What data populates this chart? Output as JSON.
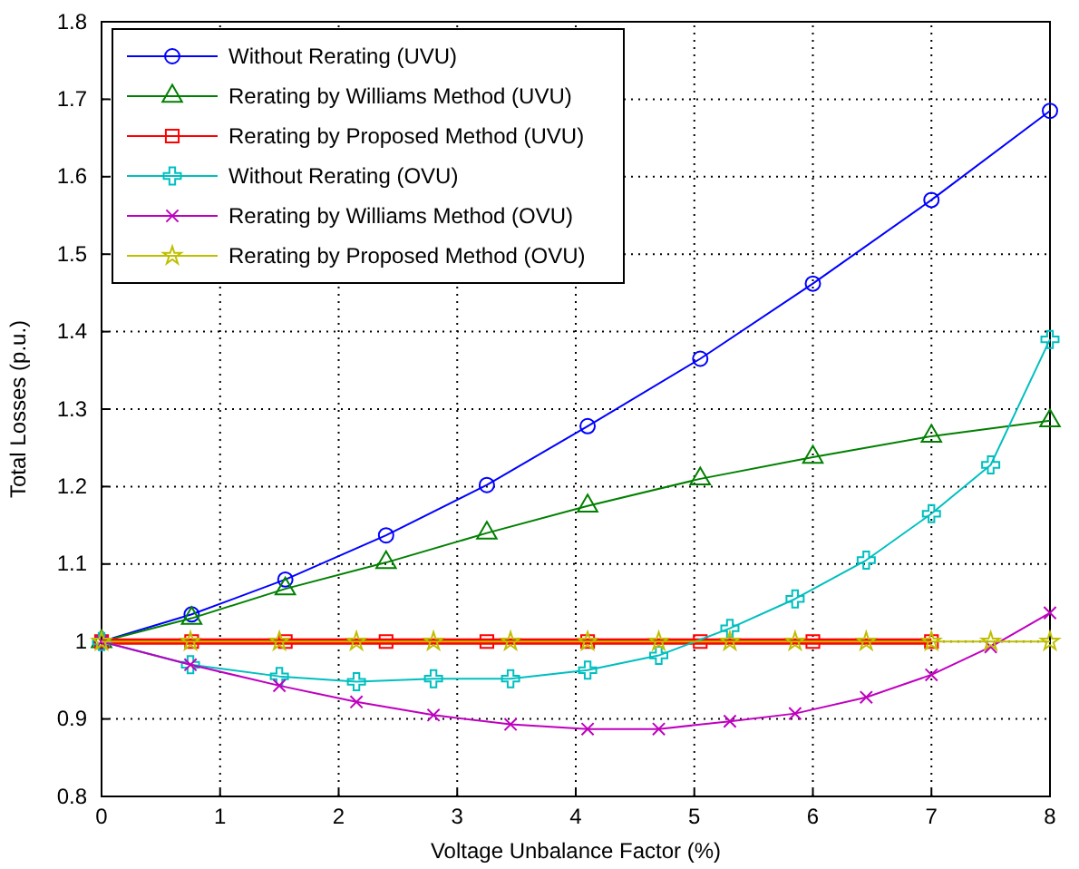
{
  "chart_data": {
    "type": "line",
    "xlabel": "Voltage Unbalance Factor (%)",
    "ylabel": "Total Losses (p.u.)",
    "xlim": [
      0,
      8
    ],
    "xticks": [
      0,
      1,
      2,
      3,
      4,
      5,
      6,
      7,
      8
    ],
    "ylim": [
      0.8,
      1.8
    ],
    "yticks": [
      0.8,
      0.9,
      1,
      1.1,
      1.2,
      1.3,
      1.4,
      1.5,
      1.6,
      1.7,
      1.8
    ],
    "grid": true,
    "legend": "top left",
    "series": [
      {
        "name": "Without Rerating (UVU)",
        "color": "#0000ff",
        "marker": "circle",
        "x": [
          0,
          0.76,
          1.55,
          2.4,
          3.25,
          4.1,
          5.05,
          6,
          7,
          8
        ],
        "values": [
          1,
          1.035,
          1.08,
          1.137,
          1.202,
          1.278,
          1.365,
          1.462,
          1.57,
          1.685
        ]
      },
      {
        "name": "Rerating by Williams Method (UVU)",
        "color": "#008000",
        "marker": "triangle",
        "x": [
          0,
          0.76,
          1.55,
          2.4,
          3.25,
          4.1,
          5.05,
          6,
          7,
          8
        ],
        "values": [
          1,
          1.03,
          1.068,
          1.102,
          1.14,
          1.175,
          1.21,
          1.238,
          1.265,
          1.285
        ]
      },
      {
        "name": "Rerating by Proposed Method (UVU)",
        "color": "#ff0000",
        "marker": "square",
        "x": [
          0,
          0.76,
          1.55,
          2.4,
          3.25,
          4.1,
          5.05,
          6,
          7
        ],
        "values": [
          1,
          1,
          1,
          1,
          1,
          1,
          1,
          1,
          1
        ]
      },
      {
        "name": "Without Rerating (OVU)",
        "color": "#00bfbf",
        "marker": "cross",
        "x": [
          0,
          0.75,
          1.5,
          2.15,
          2.8,
          3.45,
          4.1,
          4.7,
          5.3,
          5.85,
          6.45,
          7,
          7.5,
          8
        ],
        "values": [
          1,
          0.97,
          0.955,
          0.948,
          0.952,
          0.952,
          0.963,
          0.982,
          1.017,
          1.055,
          1.105,
          1.165,
          1.228,
          1.39
        ]
      },
      {
        "name": "Rerating by Williams Method (OVU)",
        "color": "#bf00bf",
        "marker": "x",
        "x": [
          0,
          0.75,
          1.5,
          2.15,
          2.8,
          3.45,
          4.1,
          4.7,
          5.3,
          5.85,
          6.45,
          7,
          7.5,
          8
        ],
        "values": [
          1,
          0.97,
          0.943,
          0.922,
          0.905,
          0.893,
          0.887,
          0.887,
          0.897,
          0.907,
          0.928,
          0.957,
          0.993,
          1.037
        ]
      },
      {
        "name": "Rerating by Proposed Method (OVU)",
        "color": "#bfbf00",
        "marker": "star",
        "x": [
          0,
          0.75,
          1.5,
          2.15,
          2.8,
          3.45,
          4.1,
          4.7,
          5.3,
          5.85,
          6.45,
          7,
          7.5,
          8
        ],
        "values": [
          1,
          1,
          1,
          1,
          1,
          1,
          1,
          1,
          1,
          1,
          1,
          1,
          1,
          1
        ]
      }
    ]
  }
}
